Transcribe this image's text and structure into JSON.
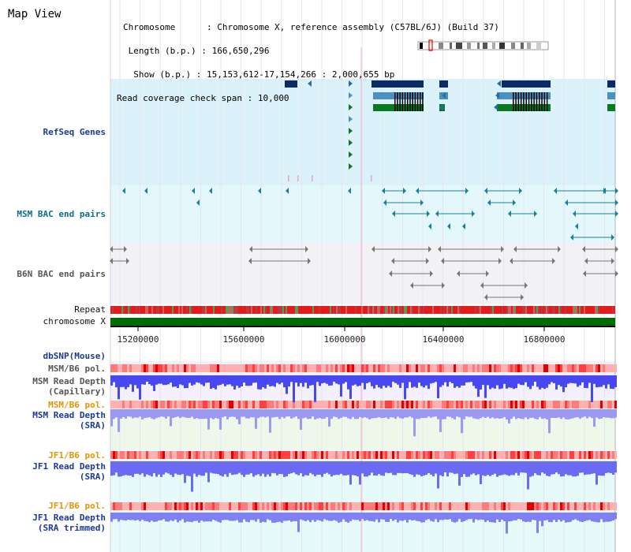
{
  "header": {
    "title": "Map View",
    "info_lines": [
      {
        "key": "Chromosome      ",
        "value": ": Chromosome X, reference assembly (C57BL/6J) (Build 37)"
      },
      {
        "key": " Length (b.p.) ",
        "value": ": 166,650,296"
      },
      {
        "key": "  Show (b.p.) ",
        "value": ": 15,153,612-17,154,266 : 2,000,655 bp"
      },
      {
        "key": "Read coverage check span ",
        "value": ": 10,000"
      }
    ]
  },
  "tracks": {
    "refseq": "RefSeq Genes",
    "msm_bac": "MSM BAC end pairs",
    "b6n_bac": "B6N BAC end pairs",
    "repeat": "Repeat",
    "chromosome": "chromosome X",
    "dbsnp": "dbSNP(Mouse)",
    "msm_b6_pol_1": "MSM/B6 pol.",
    "msm_depth_cap_1": "MSM Read Depth",
    "msm_depth_cap_2": "(Capillary)",
    "msm_b6_pol_2": "MSM/B6 pol.",
    "msm_depth_sra_1": "MSM Read Depth",
    "msm_depth_sra_2": "(SRA)",
    "jf1_b6_pol_1": "JF1/B6 pol.",
    "jf1_depth_sra_1": "JF1 Read Depth",
    "jf1_depth_sra_2": "(SRA)",
    "jf1_b6_pol_2": "JF1/B6 pol.",
    "jf1_depth_trim_1": "JF1 Read Depth",
    "jf1_depth_trim_2": "(SRA trimmed)"
  },
  "axis": {
    "ticks": [
      "15200000",
      "15600000",
      "16000000",
      "16400000",
      "16800000"
    ]
  },
  "colors": {
    "refseq_bg": "#dbf2fa",
    "bac_bg": "#e4f7fb",
    "b6n_bg": "#f2f2f6",
    "chrom_green": "#006d00",
    "depth_blue": "#2b2bff",
    "pol_red": "#ff4a4a",
    "label_navy": "#1a3a9a",
    "label_orange": "#e59400"
  }
}
